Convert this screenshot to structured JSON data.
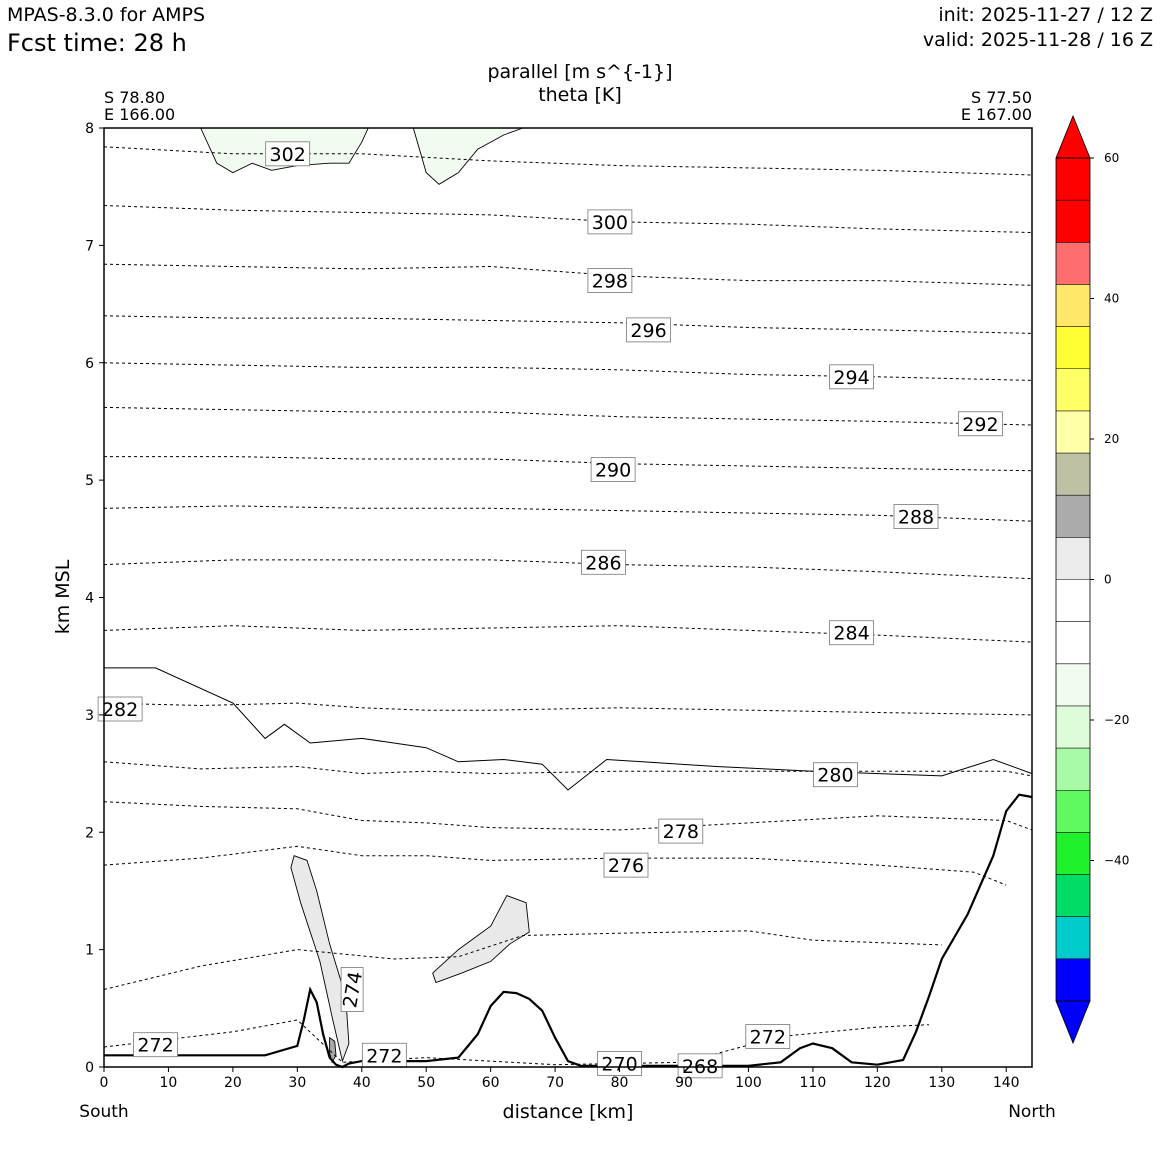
{
  "header": {
    "model": "MPAS-8.3.0 for AMPS",
    "fcst_time": "Fcst time:   28 h",
    "init": "init: 2025-11-27 / 12 Z",
    "valid": "valid: 2025-11-28 / 16 Z"
  },
  "chart_data": {
    "type": "cross-section",
    "title_line1": "parallel [m s^{-1}]",
    "title_line2": "theta [K]",
    "start_point": {
      "lat": "S 78.80",
      "lon": "E 166.00"
    },
    "end_point": {
      "lat": "S 77.50",
      "lon": "E 167.00"
    },
    "xlabel": "distance [km]",
    "ylabel": "km MSL",
    "xlim": [
      0,
      144
    ],
    "ylim": [
      0,
      8
    ],
    "xticks": [
      "0",
      "10",
      "20",
      "30",
      "40",
      "50",
      "60",
      "70",
      "80",
      "90",
      "100",
      "110",
      "120",
      "130",
      "140"
    ],
    "yticks": [
      "0",
      "1",
      "2",
      "3",
      "4",
      "5",
      "6",
      "7",
      "8"
    ],
    "left_end_label": "South",
    "right_end_label": "North",
    "theta_labels": [
      {
        "text": "302",
        "x": 28.5,
        "y": 7.78
      },
      {
        "text": "300",
        "x": 78.5,
        "y": 7.2
      },
      {
        "text": "298",
        "x": 78.5,
        "y": 6.7
      },
      {
        "text": "296",
        "x": 84.5,
        "y": 6.28
      },
      {
        "text": "294",
        "x": 116.0,
        "y": 5.88
      },
      {
        "text": "292",
        "x": 136.0,
        "y": 5.48
      },
      {
        "text": "290",
        "x": 79.0,
        "y": 5.09
      },
      {
        "text": "288",
        "x": 126.0,
        "y": 4.69
      },
      {
        "text": "286",
        "x": 77.5,
        "y": 4.3
      },
      {
        "text": "284",
        "x": 116.0,
        "y": 3.7
      },
      {
        "text": "282",
        "x": 2.5,
        "y": 3.05
      },
      {
        "text": "280",
        "x": 113.5,
        "y": 2.49
      },
      {
        "text": "278",
        "x": 89.5,
        "y": 2.01
      },
      {
        "text": "276",
        "x": 81.0,
        "y": 1.72
      },
      {
        "text": "274",
        "x": 38.5,
        "y": 0.66
      },
      {
        "text": "272",
        "x": 8.0,
        "y": 0.19
      },
      {
        "text": "272",
        "x": 43.5,
        "y": 0.1
      },
      {
        "text": "272",
        "x": 103.0,
        "y": 0.26
      },
      {
        "text": "270",
        "x": 80.0,
        "y": 0.03
      },
      {
        "text": "268",
        "x": 92.5,
        "y": 0.01
      }
    ],
    "theta_isolines": [
      {
        "level": 302,
        "points": [
          [
            0,
            7.84
          ],
          [
            20,
            7.78
          ],
          [
            40,
            7.78
          ],
          [
            60,
            7.72
          ],
          [
            80,
            7.68
          ],
          [
            100,
            7.66
          ],
          [
            120,
            7.64
          ],
          [
            144,
            7.6
          ]
        ]
      },
      {
        "level": 300,
        "points": [
          [
            0,
            7.34
          ],
          [
            20,
            7.3
          ],
          [
            40,
            7.28
          ],
          [
            60,
            7.26
          ],
          [
            80,
            7.2
          ],
          [
            100,
            7.18
          ],
          [
            120,
            7.14
          ],
          [
            144,
            7.11
          ]
        ]
      },
      {
        "level": 298,
        "points": [
          [
            0,
            6.84
          ],
          [
            20,
            6.82
          ],
          [
            40,
            6.8
          ],
          [
            60,
            6.82
          ],
          [
            80,
            6.74
          ],
          [
            100,
            6.7
          ],
          [
            120,
            6.7
          ],
          [
            144,
            6.66
          ]
        ]
      },
      {
        "level": 296,
        "points": [
          [
            0,
            6.4
          ],
          [
            20,
            6.38
          ],
          [
            40,
            6.38
          ],
          [
            60,
            6.36
          ],
          [
            80,
            6.34
          ],
          [
            100,
            6.3
          ],
          [
            120,
            6.28
          ],
          [
            144,
            6.25
          ]
        ]
      },
      {
        "level": 294,
        "points": [
          [
            0,
            6.0
          ],
          [
            20,
            5.98
          ],
          [
            40,
            5.96
          ],
          [
            60,
            5.96
          ],
          [
            80,
            5.94
          ],
          [
            100,
            5.9
          ],
          [
            120,
            5.88
          ],
          [
            144,
            5.85
          ]
        ]
      },
      {
        "level": 292,
        "points": [
          [
            0,
            5.62
          ],
          [
            20,
            5.6
          ],
          [
            40,
            5.58
          ],
          [
            60,
            5.58
          ],
          [
            80,
            5.54
          ],
          [
            100,
            5.52
          ],
          [
            120,
            5.5
          ],
          [
            144,
            5.47
          ]
        ]
      },
      {
        "level": 290,
        "points": [
          [
            0,
            5.2
          ],
          [
            20,
            5.2
          ],
          [
            40,
            5.18
          ],
          [
            60,
            5.18
          ],
          [
            80,
            5.14
          ],
          [
            100,
            5.12
          ],
          [
            120,
            5.1
          ],
          [
            144,
            5.08
          ]
        ]
      },
      {
        "level": 288,
        "points": [
          [
            0,
            4.76
          ],
          [
            20,
            4.78
          ],
          [
            40,
            4.76
          ],
          [
            60,
            4.76
          ],
          [
            80,
            4.74
          ],
          [
            100,
            4.72
          ],
          [
            120,
            4.7
          ],
          [
            144,
            4.65
          ]
        ]
      },
      {
        "level": 286,
        "points": [
          [
            0,
            4.28
          ],
          [
            20,
            4.32
          ],
          [
            40,
            4.32
          ],
          [
            60,
            4.32
          ],
          [
            80,
            4.28
          ],
          [
            100,
            4.26
          ],
          [
            120,
            4.22
          ],
          [
            144,
            4.16
          ]
        ]
      },
      {
        "level": 284,
        "points": [
          [
            0,
            3.72
          ],
          [
            20,
            3.76
          ],
          [
            40,
            3.72
          ],
          [
            60,
            3.74
          ],
          [
            80,
            3.76
          ],
          [
            100,
            3.72
          ],
          [
            120,
            3.68
          ],
          [
            144,
            3.62
          ]
        ]
      },
      {
        "level": 282,
        "points": [
          [
            0,
            3.1
          ],
          [
            15,
            3.08
          ],
          [
            30,
            3.1
          ],
          [
            40,
            3.06
          ],
          [
            50,
            3.04
          ],
          [
            60,
            3.04
          ],
          [
            80,
            3.06
          ],
          [
            100,
            3.04
          ],
          [
            120,
            3.02
          ],
          [
            144,
            3.0
          ]
        ]
      },
      {
        "level": 280,
        "points": [
          [
            0,
            2.6
          ],
          [
            15,
            2.54
          ],
          [
            30,
            2.56
          ],
          [
            40,
            2.5
          ],
          [
            50,
            2.52
          ],
          [
            60,
            2.5
          ],
          [
            80,
            2.52
          ],
          [
            100,
            2.52
          ],
          [
            120,
            2.52
          ],
          [
            140,
            2.52
          ],
          [
            144,
            2.48
          ]
        ]
      },
      {
        "level": 278,
        "points": [
          [
            0,
            2.26
          ],
          [
            15,
            2.22
          ],
          [
            30,
            2.2
          ],
          [
            40,
            2.1
          ],
          [
            50,
            2.08
          ],
          [
            60,
            2.04
          ],
          [
            80,
            2.02
          ],
          [
            100,
            2.08
          ],
          [
            120,
            2.14
          ],
          [
            140,
            2.1
          ],
          [
            144,
            2.02
          ]
        ]
      },
      {
        "level": 276,
        "points": [
          [
            0,
            1.72
          ],
          [
            15,
            1.78
          ],
          [
            30,
            1.88
          ],
          [
            40,
            1.8
          ],
          [
            50,
            1.8
          ],
          [
            60,
            1.76
          ],
          [
            80,
            1.78
          ],
          [
            100,
            1.78
          ],
          [
            120,
            1.72
          ],
          [
            135,
            1.66
          ],
          [
            140,
            1.55
          ]
        ]
      },
      {
        "level": 274,
        "points": [
          [
            0,
            0.66
          ],
          [
            15,
            0.86
          ],
          [
            30,
            1.0
          ],
          [
            45,
            0.92
          ],
          [
            55,
            0.94
          ],
          [
            65,
            1.12
          ],
          [
            80,
            1.14
          ],
          [
            100,
            1.16
          ],
          [
            110,
            1.08
          ],
          [
            130,
            1.04
          ]
        ]
      },
      {
        "level": 272,
        "points": [
          [
            0,
            0.17
          ],
          [
            20,
            0.3
          ],
          [
            30,
            0.4
          ],
          [
            37,
            0.04
          ],
          [
            50,
            0.08
          ],
          [
            70,
            0.02
          ],
          [
            90,
            0.04
          ],
          [
            105,
            0.26
          ],
          [
            120,
            0.34
          ],
          [
            128,
            0.36
          ]
        ]
      }
    ],
    "wind_zero_contour": [
      [
        0,
        3.4
      ],
      [
        8,
        3.4
      ],
      [
        20,
        3.1
      ],
      [
        25,
        2.8
      ],
      [
        28,
        2.92
      ],
      [
        32,
        2.76
      ],
      [
        40,
        2.8
      ],
      [
        50,
        2.72
      ],
      [
        55,
        2.6
      ],
      [
        62,
        2.62
      ],
      [
        68,
        2.58
      ],
      [
        72,
        2.36
      ],
      [
        78,
        2.62
      ],
      [
        95,
        2.56
      ],
      [
        110,
        2.52
      ],
      [
        130,
        2.48
      ],
      [
        138,
        2.62
      ],
      [
        144,
        2.5
      ]
    ],
    "terrain_km": {
      "x": [
        0,
        10,
        20,
        25,
        30,
        31,
        32,
        33,
        34,
        35,
        36,
        37,
        38,
        40,
        50,
        55,
        58,
        60,
        62,
        64,
        66,
        68,
        70,
        72,
        74,
        90,
        100,
        105,
        108,
        110,
        113,
        116,
        120,
        124,
        126,
        128,
        130,
        134,
        138,
        140,
        142,
        144
      ],
      "y": [
        0.1,
        0.1,
        0.1,
        0.1,
        0.18,
        0.4,
        0.66,
        0.55,
        0.28,
        0.08,
        0.02,
        0.0,
        0.03,
        0.05,
        0.05,
        0.08,
        0.28,
        0.52,
        0.64,
        0.63,
        0.58,
        0.48,
        0.25,
        0.05,
        0.01,
        0.01,
        0.01,
        0.04,
        0.16,
        0.2,
        0.16,
        0.04,
        0.02,
        0.06,
        0.3,
        0.6,
        0.92,
        1.3,
        1.8,
        2.18,
        2.32,
        2.3
      ]
    },
    "shaded_regions": [
      {
        "category": "positive 6-12",
        "color": "#e9e9e9",
        "points": [
          [
            29.5,
            1.8
          ],
          [
            31.5,
            1.76
          ],
          [
            33.0,
            1.5
          ],
          [
            35.0,
            1.05
          ],
          [
            37.5,
            0.6
          ],
          [
            38.0,
            0.2
          ],
          [
            37.0,
            0.05
          ],
          [
            35.5,
            0.4
          ],
          [
            33.5,
            0.9
          ],
          [
            30.5,
            1.4
          ],
          [
            29.0,
            1.7
          ]
        ]
      },
      {
        "category": "positive 6-12",
        "color": "#e9e9e9",
        "points": [
          [
            51.0,
            0.8
          ],
          [
            55.0,
            1.0
          ],
          [
            60.0,
            1.2
          ],
          [
            62.5,
            1.46
          ],
          [
            65.5,
            1.4
          ],
          [
            66.0,
            1.15
          ],
          [
            63.0,
            1.05
          ],
          [
            60.0,
            0.9
          ],
          [
            55.5,
            0.8
          ],
          [
            51.5,
            0.72
          ]
        ]
      },
      {
        "category": "positive 12-18",
        "color": "#a9a9a9",
        "points": [
          [
            35.0,
            0.25
          ],
          [
            35.8,
            0.22
          ],
          [
            36.0,
            0.1
          ],
          [
            35.4,
            0.04
          ],
          [
            35.0,
            0.12
          ]
        ]
      },
      {
        "category": "negative 0-6",
        "color": "#f2fbf0",
        "points": [
          [
            15.0,
            8.0
          ],
          [
            17.5,
            7.7
          ],
          [
            20.0,
            7.62
          ],
          [
            23.0,
            7.7
          ],
          [
            26.0,
            7.64
          ],
          [
            30.0,
            7.68
          ],
          [
            35.0,
            7.7
          ],
          [
            38.0,
            7.7
          ],
          [
            40.0,
            7.88
          ],
          [
            41.0,
            8.0
          ]
        ]
      },
      {
        "category": "negative 0-6",
        "color": "#f2fbf0",
        "points": [
          [
            48.0,
            8.0
          ],
          [
            50.0,
            7.62
          ],
          [
            52.0,
            7.52
          ],
          [
            55.0,
            7.62
          ],
          [
            58.0,
            7.82
          ],
          [
            60.0,
            7.88
          ],
          [
            62.0,
            7.94
          ],
          [
            65.0,
            8.0
          ]
        ]
      }
    ],
    "colorbar": {
      "ticks": [
        "60",
        "40",
        "20",
        "0",
        "−20",
        "−40"
      ],
      "levels": [
        -60,
        -54,
        -48,
        -42,
        -36,
        -30,
        -24,
        -18,
        -12,
        -6,
        0,
        6,
        12,
        18,
        24,
        30,
        36,
        42,
        48,
        54,
        60
      ],
      "colors": [
        "#0000ff",
        "#00cccc",
        "#00dd66",
        "#1ef02c",
        "#60fa60",
        "#a8faa8",
        "#ddfcd8",
        "#f2fbf0",
        "#ffffff",
        "#ffffff",
        "#ebebeb",
        "#ababab",
        "#c0c0a4",
        "#ffffa8",
        "#ffff66",
        "#ffff33",
        "#ffe76a",
        "#ff6e6e",
        "#ff0000",
        "#ff0000"
      ],
      "extend": "both"
    }
  }
}
